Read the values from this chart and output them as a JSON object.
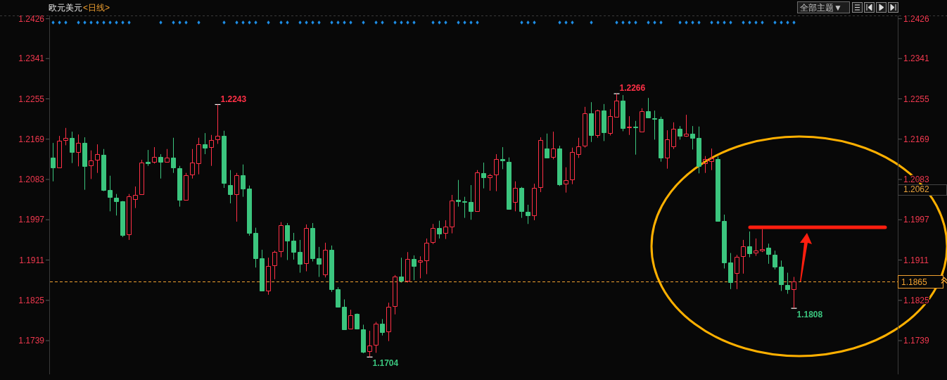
{
  "chart_data": {
    "type": "candlestick",
    "title": "欧元美元",
    "subtitle": "<日线>",
    "categories": [
      null,
      null,
      null,
      null,
      null,
      null,
      null,
      null,
      null,
      null,
      null,
      null,
      null,
      null,
      null,
      null,
      null,
      null,
      null,
      null,
      null,
      null,
      null,
      null,
      null,
      null,
      null,
      null,
      null,
      null,
      null,
      null,
      null,
      null,
      null,
      null,
      null,
      null,
      null,
      null,
      null,
      null,
      null,
      null,
      null,
      null,
      null,
      null,
      null,
      null,
      null,
      null,
      null,
      null,
      null,
      null,
      null,
      null,
      null,
      null,
      null,
      null,
      null,
      null,
      null,
      null,
      null,
      null,
      null,
      null,
      null,
      null,
      null,
      null,
      null,
      null,
      null,
      null,
      null,
      null,
      null,
      null,
      null,
      null,
      null,
      null,
      null,
      null,
      null,
      null,
      null,
      null,
      null,
      null,
      null,
      null,
      null,
      null,
      null,
      null,
      null,
      null,
      null,
      null,
      null,
      null,
      null,
      null,
      null,
      null,
      null,
      null,
      null,
      null,
      null,
      null,
      null,
      null,
      null,
      null,
      null,
      null,
      null,
      null,
      null,
      null,
      null,
      null,
      null,
      null,
      null,
      null,
      null,
      null
    ],
    "ohlc": [
      [
        1.213,
        1.2161,
        1.2079,
        1.2108
      ],
      [
        1.2108,
        1.2176,
        1.2107,
        1.2165
      ],
      [
        1.2167,
        1.2193,
        1.2156,
        1.2171
      ],
      [
        1.2172,
        1.2185,
        1.2118,
        1.2141
      ],
      [
        1.2141,
        1.2179,
        1.2111,
        1.2161
      ],
      [
        1.2161,
        1.2173,
        1.2061,
        1.2112
      ],
      [
        1.2113,
        1.2145,
        1.2084,
        1.2123
      ],
      [
        1.2125,
        1.2158,
        1.2097,
        1.2137
      ],
      [
        1.2136,
        1.2148,
        1.2058,
        1.2061
      ],
      [
        1.2061,
        1.2091,
        1.2015,
        1.2045
      ],
      [
        1.2044,
        1.2052,
        1.2006,
        1.2037
      ],
      [
        1.2037,
        1.2037,
        1.196,
        1.1965
      ],
      [
        1.1966,
        1.2052,
        1.1954,
        1.2047
      ],
      [
        1.2041,
        1.2068,
        1.2022,
        1.205
      ],
      [
        1.2051,
        1.2125,
        1.205,
        1.2119
      ],
      [
        1.2121,
        1.2146,
        1.2112,
        1.2118
      ],
      [
        1.212,
        1.2152,
        1.2117,
        1.2131
      ],
      [
        1.2131,
        1.2137,
        1.2085,
        1.2121
      ],
      [
        1.2121,
        1.2148,
        1.212,
        1.2129
      ],
      [
        1.213,
        1.2172,
        1.2097,
        1.2108
      ],
      [
        1.2107,
        1.2112,
        1.2025,
        1.2039
      ],
      [
        1.2039,
        1.2097,
        1.2039,
        1.2092
      ],
      [
        1.2093,
        1.2148,
        1.2085,
        1.2119
      ],
      [
        1.2117,
        1.2172,
        1.2094,
        1.2158
      ],
      [
        1.2158,
        1.2182,
        1.2137,
        1.2151
      ],
      [
        1.2152,
        1.2178,
        1.2112,
        1.2167
      ],
      [
        1.2168,
        1.2243,
        1.2159,
        1.2176
      ],
      [
        1.2176,
        1.2187,
        1.2065,
        1.2076
      ],
      [
        1.2071,
        1.2103,
        1.2032,
        1.2051
      ],
      [
        1.2051,
        1.2097,
        1.1993,
        1.2092
      ],
      [
        1.2092,
        1.2115,
        1.2046,
        1.2064
      ],
      [
        1.2064,
        1.207,
        1.1963,
        1.1969
      ],
      [
        1.1969,
        1.198,
        1.1895,
        1.1915
      ],
      [
        1.1915,
        1.1933,
        1.1845,
        1.1846
      ],
      [
        1.1846,
        1.1916,
        1.1837,
        1.1899
      ],
      [
        1.19,
        1.1931,
        1.187,
        1.1928
      ],
      [
        1.193,
        1.1992,
        1.1917,
        1.1985
      ],
      [
        1.1985,
        1.199,
        1.1911,
        1.1953
      ],
      [
        1.1952,
        1.1969,
        1.1912,
        1.1929
      ],
      [
        1.1928,
        1.1954,
        1.1884,
        1.1903
      ],
      [
        1.1904,
        1.1987,
        1.1887,
        1.1979
      ],
      [
        1.1979,
        1.199,
        1.1908,
        1.1915
      ],
      [
        1.1915,
        1.1939,
        1.1875,
        1.1903
      ],
      [
        1.188,
        1.1948,
        1.1874,
        1.1933
      ],
      [
        1.1933,
        1.1942,
        1.1843,
        1.1849
      ],
      [
        1.1849,
        1.1853,
        1.181,
        1.1811
      ],
      [
        1.1811,
        1.1827,
        1.1762,
        1.1763
      ],
      [
        1.1764,
        1.1805,
        1.1764,
        1.1793
      ],
      [
        1.1796,
        1.1797,
        1.1763,
        1.1764
      ],
      [
        1.1763,
        1.1773,
        1.1712,
        1.1715
      ],
      [
        1.1716,
        1.176,
        1.1704,
        1.1728
      ],
      [
        1.173,
        1.1779,
        1.1713,
        1.1775
      ],
      [
        1.1775,
        1.1785,
        1.175,
        1.1757
      ],
      [
        1.1758,
        1.182,
        1.1738,
        1.1811
      ],
      [
        1.1812,
        1.1879,
        1.1795,
        1.1876
      ],
      [
        1.1876,
        1.1916,
        1.1863,
        1.1867
      ],
      [
        1.1867,
        1.1928,
        1.1863,
        1.1913
      ],
      [
        1.1913,
        1.1921,
        1.1868,
        1.1899
      ],
      [
        1.1908,
        1.1919,
        1.1872,
        1.191
      ],
      [
        1.191,
        1.1957,
        1.1881,
        1.1948
      ],
      [
        1.1949,
        1.1988,
        1.1945,
        1.198
      ],
      [
        1.1979,
        1.1995,
        1.1957,
        1.1968
      ],
      [
        1.1969,
        1.1996,
        1.1956,
        1.1982
      ],
      [
        1.1982,
        1.205,
        1.1968,
        1.2038
      ],
      [
        1.2039,
        1.2082,
        1.2025,
        1.2037
      ],
      [
        1.2037,
        1.2046,
        1.2001,
        1.2035
      ],
      [
        1.2035,
        1.2071,
        1.1997,
        1.2016
      ],
      [
        1.2016,
        1.2103,
        1.2014,
        1.2098
      ],
      [
        1.2097,
        1.2119,
        1.2064,
        1.2087
      ],
      [
        1.2087,
        1.2095,
        1.2059,
        1.2092
      ],
      [
        1.2093,
        1.2137,
        1.2058,
        1.2126
      ],
      [
        1.2127,
        1.2152,
        1.2105,
        1.2123
      ],
      [
        1.2121,
        1.213,
        1.2019,
        1.202
      ],
      [
        1.2035,
        1.2079,
        1.2015,
        1.2065
      ],
      [
        1.2065,
        1.2067,
        1.2001,
        1.2015
      ],
      [
        1.2014,
        1.2029,
        1.1988,
        1.2006
      ],
      [
        1.2006,
        1.2074,
        1.1996,
        1.2065
      ],
      [
        1.2066,
        1.2173,
        1.2056,
        1.2167
      ],
      [
        1.2149,
        1.2181,
        1.213,
        1.213
      ],
      [
        1.2131,
        1.2185,
        1.2126,
        1.2149
      ],
      [
        1.2149,
        1.2155,
        1.2069,
        1.2073
      ],
      [
        1.2074,
        1.2109,
        1.2055,
        1.2081
      ],
      [
        1.2083,
        1.2151,
        1.2073,
        1.2141
      ],
      [
        1.2137,
        1.2172,
        1.2129,
        1.2153
      ],
      [
        1.2155,
        1.2238,
        1.2151,
        1.2224
      ],
      [
        1.2224,
        1.2248,
        1.2163,
        1.2177
      ],
      [
        1.2177,
        1.2232,
        1.2172,
        1.223
      ],
      [
        1.223,
        1.2244,
        1.2165,
        1.2184
      ],
      [
        1.2182,
        1.2233,
        1.2177,
        1.2218
      ],
      [
        1.2217,
        1.2266,
        1.2216,
        1.2251
      ],
      [
        1.2251,
        1.2263,
        1.2186,
        1.2193
      ],
      [
        1.2194,
        1.2218,
        1.2178,
        1.2195
      ],
      [
        1.2195,
        1.2208,
        1.2136,
        1.2194
      ],
      [
        1.2185,
        1.2235,
        1.2184,
        1.2228
      ],
      [
        1.2228,
        1.2257,
        1.2215,
        1.2215
      ],
      [
        1.2214,
        1.223,
        1.2168,
        1.2213
      ],
      [
        1.2212,
        1.2217,
        1.2121,
        1.2129
      ],
      [
        1.2129,
        1.2188,
        1.2106,
        1.2168
      ],
      [
        1.2153,
        1.2205,
        1.2148,
        1.2191
      ],
      [
        1.2191,
        1.2197,
        1.2168,
        1.2176
      ],
      [
        1.2176,
        1.2221,
        1.2174,
        1.218
      ],
      [
        1.2181,
        1.2197,
        1.2147,
        1.2172
      ],
      [
        1.2172,
        1.2196,
        1.2096,
        1.2111
      ],
      [
        1.2117,
        1.2133,
        1.2097,
        1.2126
      ],
      [
        1.2122,
        1.2149,
        1.2103,
        1.2128
      ],
      [
        1.2126,
        1.2132,
        1.1995,
        1.1995
      ],
      [
        1.1994,
        1.2008,
        1.1893,
        1.1906
      ],
      [
        1.1906,
        1.1926,
        1.1849,
        1.1864
      ],
      [
        1.1883,
        1.1922,
        1.1849,
        1.1918
      ],
      [
        1.1919,
        1.1954,
        1.1882,
        1.194
      ],
      [
        1.194,
        1.1972,
        1.1917,
        1.1926
      ],
      [
        1.1927,
        1.1957,
        1.192,
        1.1931
      ],
      [
        1.1932,
        1.1977,
        1.1928,
        1.1934
      ],
      [
        1.1937,
        1.1946,
        1.1903,
        1.1924
      ],
      [
        1.1923,
        1.1931,
        1.1891,
        1.1897
      ],
      [
        1.1897,
        1.191,
        1.1845,
        1.1859
      ],
      [
        1.1858,
        1.1884,
        1.1839,
        1.1849
      ],
      [
        1.1849,
        1.1875,
        1.1808,
        1.1865
      ],
      null,
      null,
      null,
      null,
      null,
      null,
      null,
      null,
      null,
      null,
      null,
      null,
      null,
      null,
      null,
      null
    ],
    "colors": [
      "#3bc57e",
      "#ff3046",
      "#ff3046",
      "#3bc57e",
      "#ff3046",
      "#3bc57e",
      "#ff3046",
      "#ff3046",
      "#3bc57e",
      "#3bc57e",
      "#3bc57e",
      "#3bc57e",
      "#ff3046",
      "#ff3046",
      "#ff3046",
      "#3bc57e",
      "#ff3046",
      "#3bc57e",
      "#ff3046",
      "#3bc57e",
      "#3bc57e",
      "#ff3046",
      "#ff3046",
      "#ff3046",
      "#3bc57e",
      "#ff3046",
      "#ff3046",
      "#3bc57e",
      "#3bc57e",
      "#ff3046",
      "#3bc57e",
      "#3bc57e",
      "#3bc57e",
      "#3bc57e",
      "#ff3046",
      "#ff3046",
      "#ff3046",
      "#3bc57e",
      "#3bc57e",
      "#3bc57e",
      "#ff3046",
      "#3bc57e",
      "#3bc57e",
      "#ff3046",
      "#3bc57e",
      "#3bc57e",
      "#3bc57e",
      "#ff3046",
      "#3bc57e",
      "#3bc57e",
      "#ff3046",
      "#ff3046",
      "#3bc57e",
      "#ff3046",
      "#ff3046",
      "#3bc57e",
      "#ff3046",
      "#3bc57e",
      "#ff3046",
      "#ff3046",
      "#ff3046",
      "#3bc57e",
      "#ff3046",
      "#ff3046",
      "#3bc57e",
      "#3bc57e",
      "#3bc57e",
      "#ff3046",
      "#3bc57e",
      "#ff3046",
      "#ff3046",
      "#3bc57e",
      "#3bc57e",
      "#ff3046",
      "#3bc57e",
      "#3bc57e",
      "#ff3046",
      "#ff3046",
      "#3bc57e",
      "#ff3046",
      "#3bc57e",
      "#ff3046",
      "#ff3046",
      "#ff3046",
      "#ff3046",
      "#3bc57e",
      "#ff3046",
      "#3bc57e",
      "#ff3046",
      "#ff3046",
      "#3bc57e",
      "#ff3046",
      "#3bc57e",
      "#ff3046",
      "#3bc57e",
      "#3bc57e",
      "#3bc57e",
      "#ff3046",
      "#ff3046",
      "#3bc57e",
      "#ff3046",
      "#3bc57e",
      "#3bc57e",
      "#ff3046",
      "#ff3046",
      "#3bc57e",
      "#3bc57e",
      "#3bc57e",
      "#ff3046",
      "#ff3046",
      "#3bc57e",
      "#ff3046",
      "#ff3046",
      "#3bc57e",
      "#3bc57e",
      "#3bc57e",
      "#3bc57e",
      "#ff3046",
      null,
      null,
      null,
      null,
      null,
      null,
      null,
      null,
      null,
      null,
      null,
      null,
      null,
      null,
      null,
      null
    ],
    "value_labels": [
      null,
      null,
      null,
      null,
      null,
      null,
      null,
      null,
      null,
      null,
      null,
      null,
      null,
      null,
      null,
      null,
      null,
      null,
      null,
      null,
      null,
      null,
      null,
      null,
      null,
      null,
      "1.2243",
      null,
      null,
      null,
      null,
      null,
      null,
      null,
      null,
      null,
      null,
      null,
      null,
      null,
      null,
      null,
      null,
      null,
      null,
      null,
      null,
      null,
      null,
      null,
      "1.1704",
      null,
      null,
      null,
      null,
      null,
      null,
      null,
      null,
      null,
      null,
      null,
      null,
      null,
      null,
      null,
      null,
      null,
      null,
      null,
      null,
      null,
      null,
      null,
      null,
      null,
      null,
      null,
      null,
      null,
      null,
      null,
      null,
      null,
      null,
      null,
      null,
      null,
      null,
      "1.2266",
      null,
      null,
      null,
      null,
      null,
      null,
      null,
      null,
      null,
      null,
      null,
      null,
      null,
      null,
      null,
      null,
      null,
      null,
      null,
      null,
      null,
      null,
      null,
      null,
      null,
      null,
      null,
      "1.1808",
      null,
      null,
      null,
      null,
      null,
      null,
      null,
      null,
      null,
      null,
      null,
      null,
      null,
      null,
      null,
      null
    ],
    "series": [
      {
        "type": "scatter",
        "color": "#1e8ee6",
        "values": [
          1.2418,
          1.2418,
          1.2418,
          null,
          1.2418,
          1.2418,
          1.2418,
          1.2418,
          1.2418,
          1.2418,
          1.2418,
          1.2418,
          1.2418,
          null,
          null,
          null,
          null,
          1.2418,
          null,
          1.2418,
          1.2418,
          1.2418,
          null,
          1.2418,
          null,
          null,
          null,
          1.2418,
          null,
          1.2418,
          1.2418,
          1.2418,
          1.2418,
          null,
          1.2418,
          null,
          1.2418,
          1.2418,
          null,
          1.2418,
          1.2418,
          1.2418,
          1.2418,
          null,
          1.2418,
          1.2418,
          1.2418,
          1.2418,
          null,
          1.2418,
          null,
          1.2418,
          1.2418,
          null,
          1.2418,
          1.2418,
          1.2418,
          1.2418,
          null,
          null,
          1.2418,
          1.2418,
          1.2418,
          null,
          1.2418,
          1.2418,
          1.2418,
          1.2418,
          null,
          null,
          null,
          null,
          null,
          null,
          1.2418,
          1.2418,
          1.2418,
          null,
          null,
          null,
          1.2418,
          1.2418,
          1.2418,
          null,
          null,
          1.2418,
          null,
          null,
          null,
          1.2418,
          1.2418,
          1.2418,
          1.2418,
          null,
          1.2418,
          1.2418,
          1.2418,
          null,
          null,
          1.2418,
          1.2418,
          1.2418,
          1.2418,
          null,
          1.2418,
          1.2418,
          1.2418,
          1.2418,
          null,
          1.2418,
          1.2418,
          1.2418,
          1.2418,
          null,
          1.2418,
          1.2418,
          1.2418,
          1.2418,
          null,
          null,
          null,
          null,
          null,
          null,
          null,
          null,
          null,
          null,
          null,
          null,
          null,
          null,
          null,
          null
        ]
      }
    ],
    "marker": "diamond",
    "ylim": [
      1.1667,
      1.2433
    ],
    "yticks": [
      1.1739,
      1.1825,
      1.1911,
      1.1997,
      1.2083,
      1.2169,
      1.2255,
      1.2341,
      1.2426
    ],
    "y2lim": [
      1.1667,
      1.2433
    ],
    "y2ticks": [
      1.1739,
      1.1825,
      1.1911,
      1.1997,
      1.2083,
      1.2169,
      1.2255,
      1.2341,
      1.2426
    ],
    "ref_lines": [
      {
        "axis": "y",
        "value": 1.1865,
        "label": "1.1865",
        "color": "#f0a030",
        "line_style": "dashed"
      }
    ],
    "annotations": [
      "全部主题▼",
      "1.2062"
    ]
  }
}
